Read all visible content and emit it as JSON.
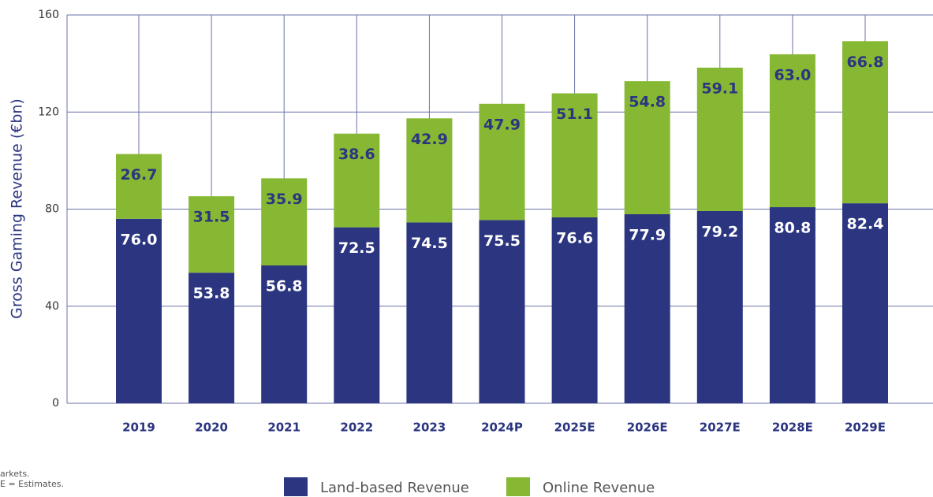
{
  "chart_data": {
    "type": "stacked_bar",
    "y_label": "Gross Gaming Revenue (€bn)",
    "categories": [
      "2019",
      "2020",
      "2021",
      "2022",
      "2023",
      "2024P",
      "2025E",
      "2026E",
      "2027E",
      "2028E",
      "2029E"
    ],
    "series": [
      {
        "name": "Land-based Revenue",
        "color": "#2b3580",
        "label_color": "#ffffff",
        "values": [
          76.0,
          53.8,
          56.8,
          72.5,
          74.5,
          75.5,
          76.6,
          77.9,
          79.2,
          80.8,
          82.4
        ],
        "value_labels": [
          "76.0",
          "53.8",
          "56.8",
          "72.5",
          "74.5",
          "75.5",
          "76.6",
          "77.9",
          "79.2",
          "80.8",
          "82.4"
        ]
      },
      {
        "name": "Online Revenue",
        "color": "#86b833",
        "label_color": "#2b3580",
        "values": [
          26.7,
          31.5,
          35.9,
          38.6,
          42.9,
          47.9,
          51.1,
          54.8,
          59.1,
          63.0,
          66.8
        ],
        "value_labels": [
          "26.7",
          "31.5",
          "35.9",
          "38.6",
          "42.9",
          "47.9",
          "51.1",
          "54.8",
          "59.1",
          "63.0",
          "66.8"
        ]
      }
    ],
    "ylim": [
      0,
      160
    ],
    "yticks": [
      0,
      40,
      80,
      120,
      160
    ],
    "grid": true,
    "notes": [
      "arkets.",
      "E = Estimates."
    ]
  }
}
